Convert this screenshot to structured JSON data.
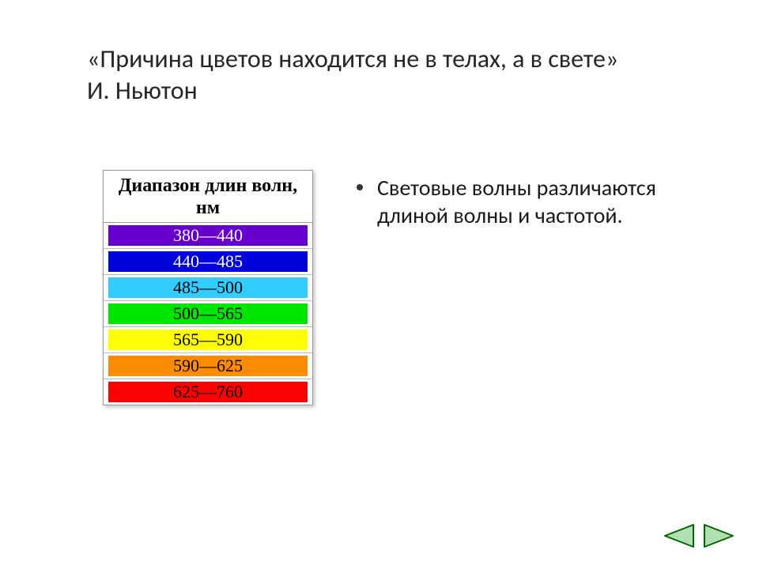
{
  "title": "«Причина цветов находится не в телах, а в свете»\nИ. Ньютон",
  "table": {
    "header": "Диапазон длин волн, нм",
    "rows": [
      {
        "label": "380—440",
        "bg": "#6600cc",
        "fg": "#ffffff"
      },
      {
        "label": "440—485",
        "bg": "#0000d8",
        "fg": "#ffffff"
      },
      {
        "label": "485—500",
        "bg": "#33ccff",
        "fg": "#000000"
      },
      {
        "label": "500—565",
        "bg": "#00e600",
        "fg": "#000000"
      },
      {
        "label": "565—590",
        "bg": "#ffff00",
        "fg": "#000000"
      },
      {
        "label": "590—625",
        "bg": "#ff8c00",
        "fg": "#000000"
      },
      {
        "label": "625—760",
        "bg": "#ff0000",
        "fg": "#000000"
      }
    ]
  },
  "bullet": "Световые волны различаются длиной волны и частотой.",
  "nav": {
    "stroke": "#006600",
    "fill": "#b3e0b3",
    "width": 42,
    "height": 34
  }
}
